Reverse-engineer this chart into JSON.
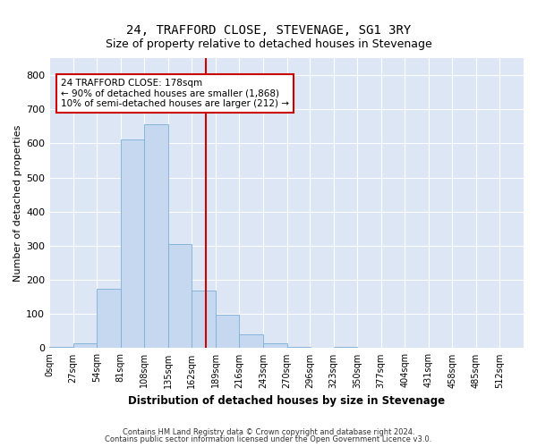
{
  "title": "24, TRAFFORD CLOSE, STEVENAGE, SG1 3RY",
  "subtitle": "Size of property relative to detached houses in Stevenage",
  "xlabel": "Distribution of detached houses by size in Stevenage",
  "ylabel": "Number of detached properties",
  "bar_color": "#c5d8f0",
  "bar_edge_color": "#7aafd4",
  "background_color": "#dce6f5",
  "grid_color": "#ffffff",
  "vline_x": 178,
  "vline_color": "#cc0000",
  "bin_edges": [
    0,
    27,
    54,
    81,
    108,
    135,
    162,
    189,
    216,
    243,
    270,
    296,
    323,
    350,
    377,
    404,
    431,
    458,
    485,
    512,
    539
  ],
  "bar_heights": [
    5,
    13,
    175,
    611,
    655,
    305,
    170,
    97,
    40,
    15,
    5,
    0,
    5,
    0,
    0,
    0,
    0,
    0,
    0,
    0
  ],
  "ylim": [
    0,
    850
  ],
  "yticks": [
    0,
    100,
    200,
    300,
    400,
    500,
    600,
    700,
    800
  ],
  "annotation_text": "24 TRAFFORD CLOSE: 178sqm\n← 90% of detached houses are smaller (1,868)\n10% of semi-detached houses are larger (212) →",
  "annotation_box_color": "#ffffff",
  "annotation_box_edge": "#cc0000",
  "footer_line1": "Contains HM Land Registry data © Crown copyright and database right 2024.",
  "footer_line2": "Contains public sector information licensed under the Open Government Licence v3.0."
}
